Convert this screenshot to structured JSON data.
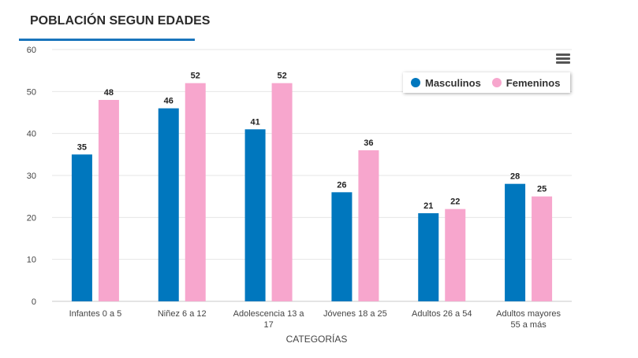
{
  "header": {
    "title": "POBLACIÓN SEGUN EDADES"
  },
  "colors": {
    "accent": "#1a75bc",
    "masculinos": "#0077be",
    "femeninos": "#f7a6cd"
  },
  "chart_data": {
    "type": "bar",
    "title": "POBLACIÓN SEGUN EDADES",
    "xlabel": "CATEGORÍAS",
    "ylabel": "",
    "ylim": [
      0,
      60
    ],
    "yticks": [
      0,
      10,
      20,
      30,
      40,
      50,
      60
    ],
    "grid": true,
    "legend_position": "top-right",
    "categories": [
      [
        "Infantes 0 a 5"
      ],
      [
        "Niñez 6 a 12"
      ],
      [
        "Adolescencia 13 a",
        "17"
      ],
      [
        "Jóvenes 18 a 25"
      ],
      [
        "Adultos 26 a 54"
      ],
      [
        "Adultos mayores",
        "55 a más"
      ]
    ],
    "series": [
      {
        "name": "Masculinos",
        "color": "#0077be",
        "values": [
          35,
          46,
          41,
          26,
          21,
          28
        ]
      },
      {
        "name": "Femeninos",
        "color": "#f7a6cd",
        "values": [
          48,
          52,
          52,
          36,
          22,
          25
        ]
      }
    ]
  }
}
